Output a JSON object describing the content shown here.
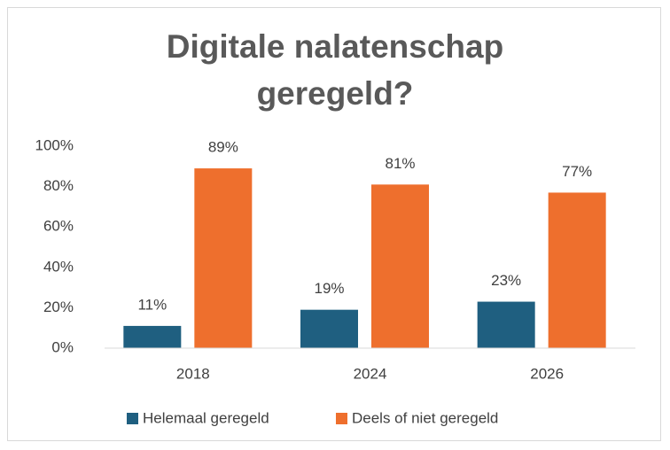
{
  "chart_data": {
    "type": "bar",
    "title": "Digitale nalatenschap geregeld?",
    "categories": [
      "2018",
      "2024",
      "2026"
    ],
    "series": [
      {
        "name": "Helemaal geregeld",
        "color": "#1f5f80",
        "values": [
          11,
          19,
          23
        ],
        "value_labels": [
          "11%",
          "19%",
          "23%"
        ]
      },
      {
        "name": "Deels of niet geregeld",
        "color": "#ee6f2d",
        "values": [
          89,
          81,
          77
        ],
        "value_labels": [
          "89%",
          "81%",
          "77%"
        ]
      }
    ],
    "ylim": [
      0,
      100
    ],
    "yticks": [
      {
        "value": 0,
        "label": "0%"
      },
      {
        "value": 20,
        "label": "20%"
      },
      {
        "value": 40,
        "label": "40%"
      },
      {
        "value": 60,
        "label": "60%"
      },
      {
        "value": 80,
        "label": "80%"
      },
      {
        "value": 100,
        "label": "100%"
      }
    ],
    "grid": false,
    "legend": "bottom"
  }
}
